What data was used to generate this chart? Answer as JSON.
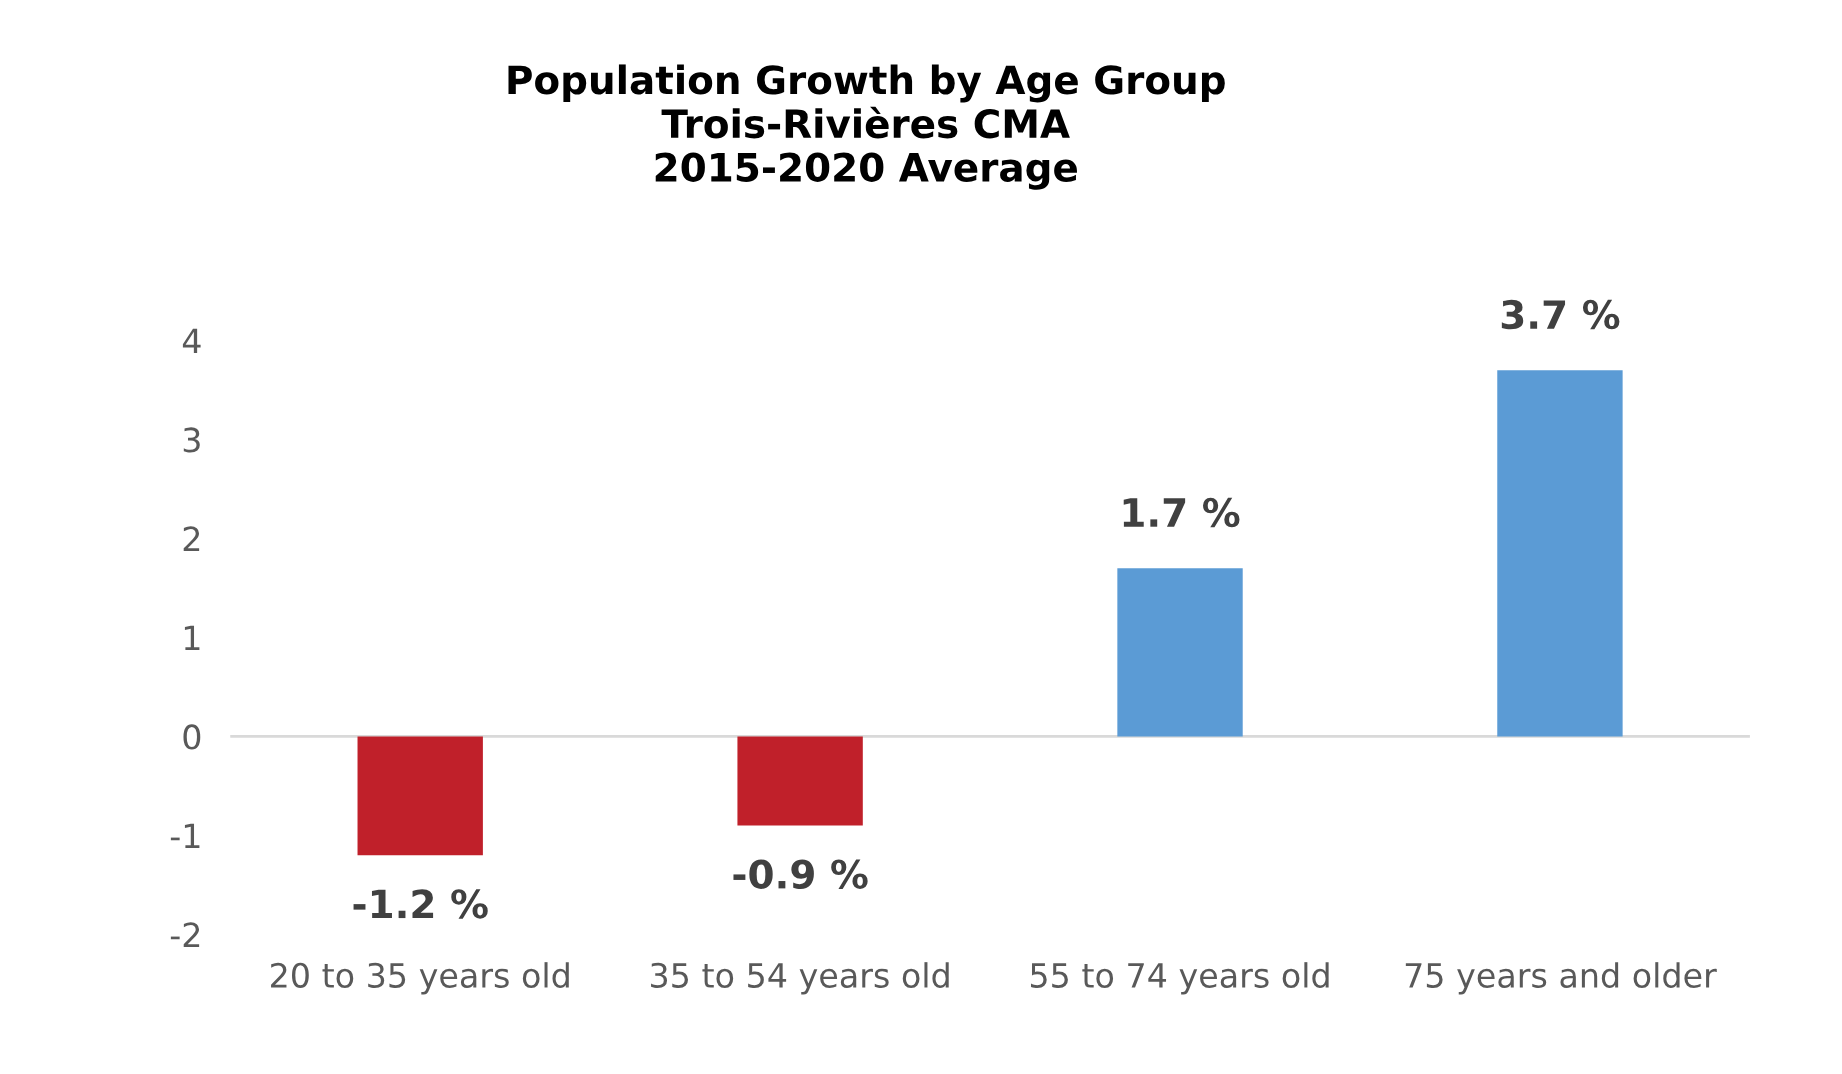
{
  "chart_data": {
    "type": "bar",
    "title": "Population Growth by Age Group\nTrois-Rivières CMA\n2015-2020 Average",
    "categories": [
      "20 to 35 years old",
      "35 to 54 years old",
      "55 to 74 years old",
      "75 years and older"
    ],
    "values": [
      -1.2,
      -0.9,
      1.7,
      3.7
    ],
    "colors": [
      "#c0202a",
      "#c0202a",
      "#5b9bd5",
      "#5b9bd5"
    ],
    "value_labels": [
      "-1.2 %",
      "-0.9 %",
      "1.7 %",
      "3.7 %"
    ],
    "ylim": [
      -2,
      4
    ],
    "yticks": [
      -2,
      -1,
      0,
      1,
      2,
      3,
      4
    ],
    "grid": false,
    "legend": false,
    "ref_lines": [
      {
        "axis": "y",
        "value": 0,
        "color": "#d9d9d9"
      }
    ]
  }
}
